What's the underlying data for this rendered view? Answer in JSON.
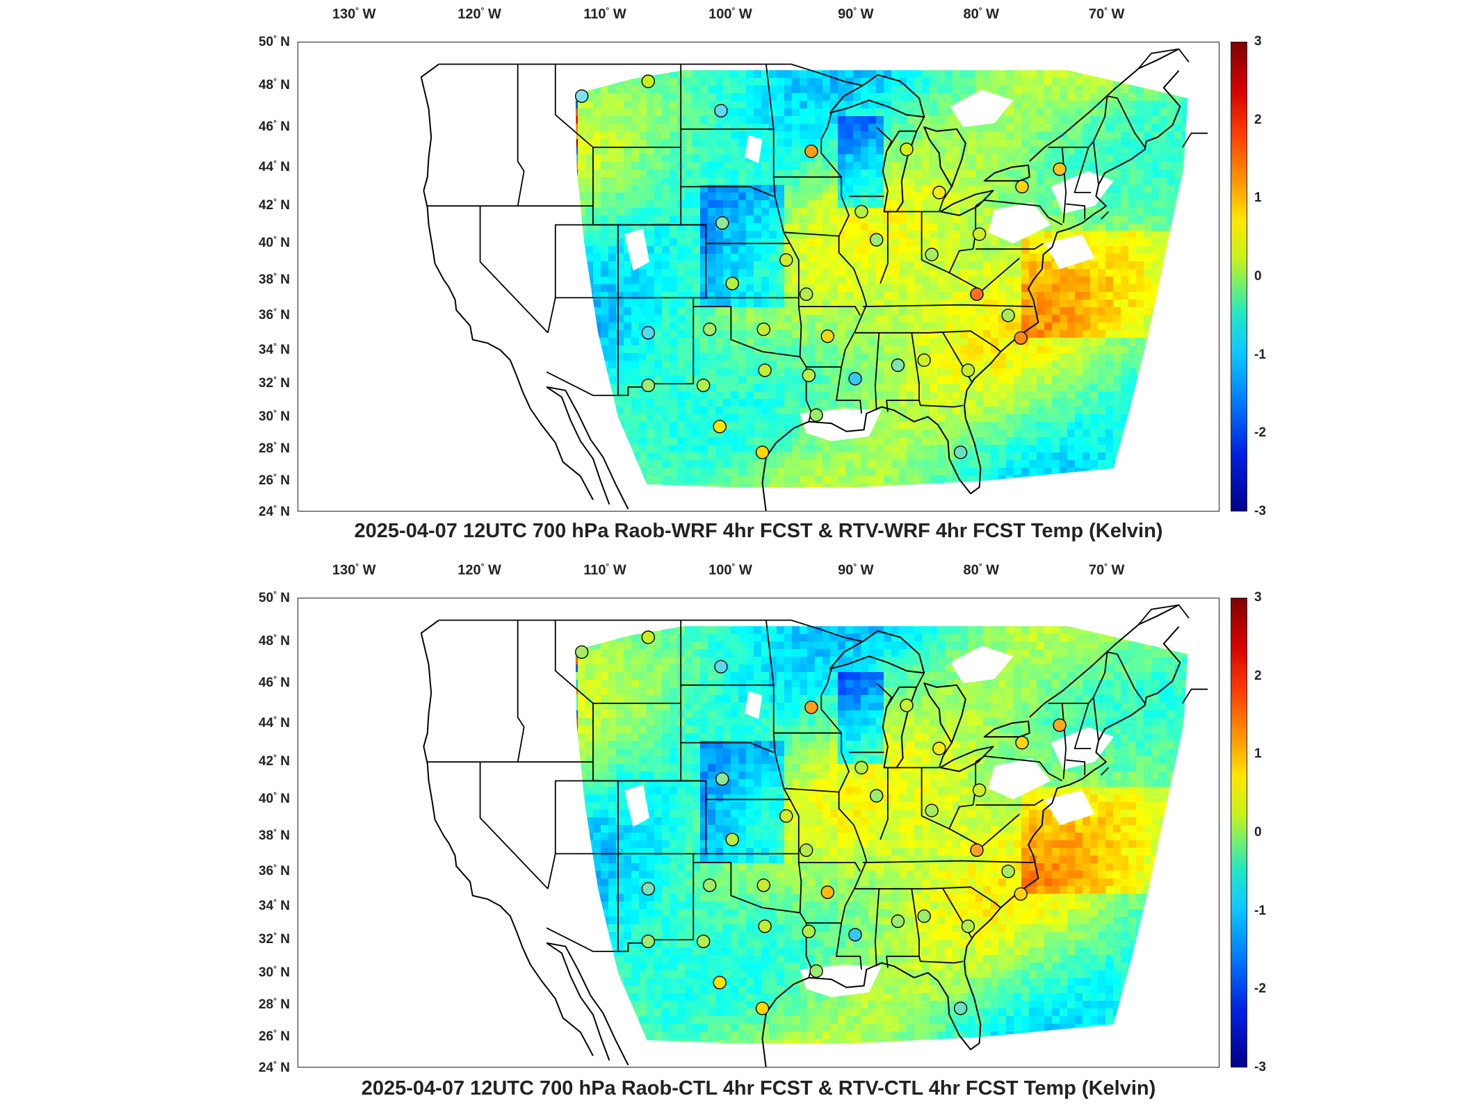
{
  "panels": [
    {
      "id": "top",
      "caption": "2025-04-07 12UTC 700 hPa Raob-WRF 4hr FCST & RTV-WRF 4hr FCST Temp (Kelvin)",
      "stations": [
        {
          "lon": -111.9,
          "lat": 47.5,
          "color": "#7ee0f0"
        },
        {
          "lon": -106.6,
          "lat": 48.2,
          "color": "#c8ee20"
        },
        {
          "lon": -100.8,
          "lat": 46.8,
          "color": "#5fd8ee"
        },
        {
          "lon": -93.6,
          "lat": 44.8,
          "color": "#ff9e1a"
        },
        {
          "lon": -86.0,
          "lat": 44.9,
          "color": "#d8ee10"
        },
        {
          "lon": -83.4,
          "lat": 42.7,
          "color": "#f4e81a"
        },
        {
          "lon": -73.8,
          "lat": 43.9,
          "color": "#ffc020"
        },
        {
          "lon": -76.8,
          "lat": 43.0,
          "color": "#ffd40a"
        },
        {
          "lon": -100.7,
          "lat": 41.1,
          "color": "#8ee898"
        },
        {
          "lon": -89.6,
          "lat": 41.7,
          "color": "#b4f040"
        },
        {
          "lon": -88.4,
          "lat": 40.2,
          "color": "#9cec70"
        },
        {
          "lon": -84.0,
          "lat": 39.4,
          "color": "#a8ec60"
        },
        {
          "lon": -80.2,
          "lat": 40.5,
          "color": "#d0ee2a"
        },
        {
          "lon": -95.6,
          "lat": 39.1,
          "color": "#d4ec28"
        },
        {
          "lon": -99.9,
          "lat": 37.8,
          "color": "#b8ee3c"
        },
        {
          "lon": -94.0,
          "lat": 37.2,
          "color": "#b4ec46"
        },
        {
          "lon": -80.4,
          "lat": 37.2,
          "color": "#ff7020"
        },
        {
          "lon": -77.9,
          "lat": 36.0,
          "color": "#a8ec5c"
        },
        {
          "lon": -106.6,
          "lat": 35.0,
          "color": "#56d8f0"
        },
        {
          "lon": -101.7,
          "lat": 35.2,
          "color": "#a4ec68"
        },
        {
          "lon": -97.4,
          "lat": 35.2,
          "color": "#c4ee32"
        },
        {
          "lon": -92.3,
          "lat": 34.8,
          "color": "#f2d812"
        },
        {
          "lon": -86.7,
          "lat": 33.1,
          "color": "#7ee4b0"
        },
        {
          "lon": -84.6,
          "lat": 33.4,
          "color": "#d0ee22"
        },
        {
          "lon": -76.9,
          "lat": 34.7,
          "color": "#ff8a10"
        },
        {
          "lon": -81.1,
          "lat": 32.8,
          "color": "#c8ee28"
        },
        {
          "lon": -106.6,
          "lat": 31.9,
          "color": "#a0ec6e"
        },
        {
          "lon": -102.2,
          "lat": 31.9,
          "color": "#b4ee4a"
        },
        {
          "lon": -97.3,
          "lat": 32.8,
          "color": "#c4ee30"
        },
        {
          "lon": -93.8,
          "lat": 32.5,
          "color": "#b4ee44"
        },
        {
          "lon": -90.1,
          "lat": 32.3,
          "color": "#36c8f4"
        },
        {
          "lon": -100.9,
          "lat": 29.4,
          "color": "#ffe200"
        },
        {
          "lon": -97.5,
          "lat": 27.8,
          "color": "#ffd800"
        },
        {
          "lon": -93.2,
          "lat": 30.1,
          "color": "#9aec6c"
        },
        {
          "lon": -81.7,
          "lat": 27.8,
          "color": "#6ae0c0"
        }
      ]
    },
    {
      "id": "bottom",
      "caption": "2025-04-07 12UTC 700 hPa Raob-CTL 4hr FCST & RTV-CTL 4hr FCST Temp (Kelvin)",
      "stations": [
        {
          "lon": -111.9,
          "lat": 47.5,
          "color": "#a8ec64"
        },
        {
          "lon": -106.6,
          "lat": 48.2,
          "color": "#c8ee20"
        },
        {
          "lon": -100.8,
          "lat": 46.8,
          "color": "#5fd8ee"
        },
        {
          "lon": -93.6,
          "lat": 44.8,
          "color": "#ff9e1a"
        },
        {
          "lon": -86.0,
          "lat": 44.9,
          "color": "#c8ee30"
        },
        {
          "lon": -83.4,
          "lat": 42.7,
          "color": "#f4e81a"
        },
        {
          "lon": -73.8,
          "lat": 43.9,
          "color": "#ffa820"
        },
        {
          "lon": -76.8,
          "lat": 43.0,
          "color": "#ffd40a"
        },
        {
          "lon": -100.7,
          "lat": 41.1,
          "color": "#8ee898"
        },
        {
          "lon": -89.6,
          "lat": 41.7,
          "color": "#b4f040"
        },
        {
          "lon": -88.4,
          "lat": 40.2,
          "color": "#9cec70"
        },
        {
          "lon": -84.0,
          "lat": 39.4,
          "color": "#a8ec60"
        },
        {
          "lon": -80.2,
          "lat": 40.5,
          "color": "#d0ee2a"
        },
        {
          "lon": -95.6,
          "lat": 39.1,
          "color": "#d4ec28"
        },
        {
          "lon": -99.9,
          "lat": 37.8,
          "color": "#b8ee3c"
        },
        {
          "lon": -94.0,
          "lat": 37.2,
          "color": "#b4ec46"
        },
        {
          "lon": -80.4,
          "lat": 37.2,
          "color": "#ffa020"
        },
        {
          "lon": -77.9,
          "lat": 36.0,
          "color": "#a8ec5c"
        },
        {
          "lon": -106.6,
          "lat": 35.0,
          "color": "#7ee2b8"
        },
        {
          "lon": -101.7,
          "lat": 35.2,
          "color": "#a4ec68"
        },
        {
          "lon": -97.4,
          "lat": 35.2,
          "color": "#c4ee32"
        },
        {
          "lon": -92.3,
          "lat": 34.8,
          "color": "#ffb810"
        },
        {
          "lon": -86.7,
          "lat": 33.1,
          "color": "#9aec6c"
        },
        {
          "lon": -84.6,
          "lat": 33.4,
          "color": "#9aec6c"
        },
        {
          "lon": -76.9,
          "lat": 34.7,
          "color": "#ffd010"
        },
        {
          "lon": -81.1,
          "lat": 32.8,
          "color": "#b4ee4a"
        },
        {
          "lon": -106.6,
          "lat": 31.9,
          "color": "#a0ec6e"
        },
        {
          "lon": -102.2,
          "lat": 31.9,
          "color": "#b4ee4a"
        },
        {
          "lon": -97.3,
          "lat": 32.8,
          "color": "#c4ee30"
        },
        {
          "lon": -93.8,
          "lat": 32.5,
          "color": "#b4ee44"
        },
        {
          "lon": -90.1,
          "lat": 32.3,
          "color": "#36c8f4"
        },
        {
          "lon": -100.9,
          "lat": 29.4,
          "color": "#ffe200"
        },
        {
          "lon": -97.5,
          "lat": 27.8,
          "color": "#ffd800"
        },
        {
          "lon": -93.2,
          "lat": 30.1,
          "color": "#9aec6c"
        },
        {
          "lon": -81.7,
          "lat": 27.8,
          "color": "#6ae0c0"
        }
      ]
    }
  ],
  "axes": {
    "lon_ticks": [
      "130",
      "120",
      "110",
      "100",
      "90",
      "80",
      "70"
    ],
    "lon_hemisphere": "W",
    "lat_ticks": [
      "50",
      "48",
      "46",
      "44",
      "42",
      "40",
      "38",
      "36",
      "34",
      "32",
      "30",
      "28",
      "26",
      "24"
    ],
    "lat_hemisphere": "N",
    "degree_symbol": "°"
  },
  "colorbar": {
    "ticks": [
      "3",
      "2",
      "1",
      "0",
      "-1",
      "-2",
      "-3"
    ],
    "min": -3,
    "max": 3,
    "colormap": "jet"
  }
}
